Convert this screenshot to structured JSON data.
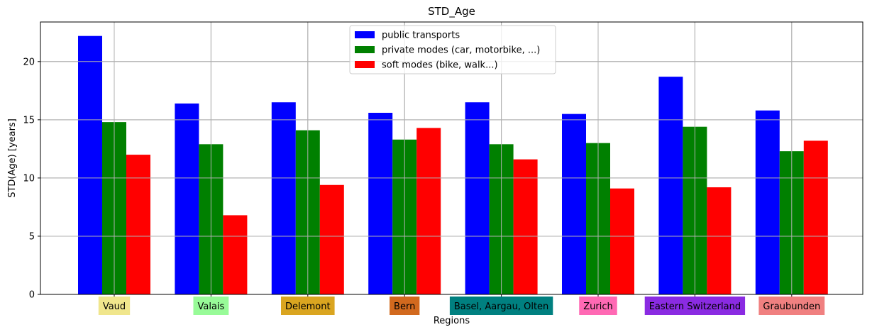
{
  "chart_data": {
    "type": "bar",
    "title": "STD_Age",
    "xlabel": "Regions",
    "ylabel": "STD(Age) [years]",
    "ylim": [
      0,
      23.4
    ],
    "yticks": [
      0,
      5,
      10,
      15,
      20
    ],
    "grid": true,
    "legend_position": "top-center",
    "categories": [
      "Vaud",
      "Valais",
      "Delemont",
      "Bern",
      "Basel, Aargau, Olten",
      "Zurich",
      "Eastern Switzerland",
      "Graubunden"
    ],
    "category_label_colors": [
      "#f0e68c",
      "#98fb98",
      "#daa520",
      "#d2691e",
      "#008080",
      "#ff69b4",
      "#8a2be2",
      "#f08080"
    ],
    "series": [
      {
        "name": "public transports",
        "color": "#0000ff",
        "values": [
          22.2,
          16.4,
          16.5,
          15.6,
          16.5,
          15.5,
          18.7,
          15.8
        ]
      },
      {
        "name": "private modes (car, motorbike, ...)",
        "color": "#008000",
        "values": [
          14.8,
          12.9,
          14.1,
          13.3,
          12.9,
          13.0,
          14.4,
          12.3
        ]
      },
      {
        "name": "soft modes (bike, walk...)",
        "color": "#ff0000",
        "values": [
          12.0,
          6.8,
          9.4,
          14.3,
          11.6,
          9.1,
          9.2,
          13.2
        ]
      }
    ]
  }
}
